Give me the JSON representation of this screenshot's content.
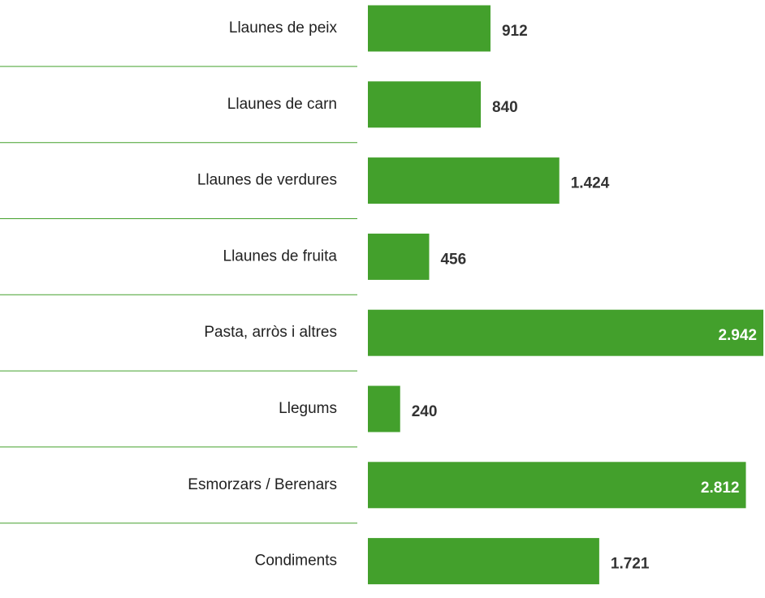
{
  "chart_data": {
    "type": "bar",
    "orientation": "horizontal",
    "categories": [
      "Llaunes de peix",
      "Llaunes de carn",
      "Llaunes de verdures",
      "Llaunes de fruita",
      "Pasta, arròs i altres",
      "Llegums",
      "Esmorzars / Berenars",
      "Condiments"
    ],
    "values": [
      912,
      840,
      1424,
      456,
      2942,
      240,
      2812,
      1721
    ],
    "value_labels": [
      "912",
      "840",
      "1.424",
      "456",
      "2.942",
      "240",
      "2.812",
      "1.721"
    ],
    "color": "#43a02c"
  }
}
